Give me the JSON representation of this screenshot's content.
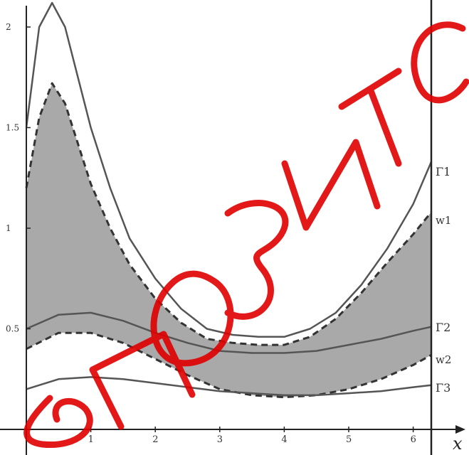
{
  "chart_data": {
    "type": "line",
    "xlabel": "x",
    "ylabel": "",
    "xlim": [
      0,
      6.28
    ],
    "ylim": [
      0,
      2.1
    ],
    "x_ticks": [
      "1",
      "2",
      "3",
      "4",
      "5",
      "6"
    ],
    "y_ticks": [
      "0.5",
      "1",
      "1.5",
      "2"
    ],
    "grid": false,
    "series": [
      {
        "name": "Γ1",
        "style": "solid",
        "x": [
          0,
          0.2,
          0.4,
          0.6,
          0.8,
          1.0,
          1.3,
          1.6,
          2.0,
          2.4,
          2.8,
          3.2,
          3.6,
          4.0,
          4.4,
          4.8,
          5.2,
          5.6,
          6.0,
          6.28
        ],
        "y": [
          1.5,
          2.0,
          2.12,
          2.0,
          1.75,
          1.5,
          1.2,
          0.95,
          0.75,
          0.6,
          0.5,
          0.47,
          0.46,
          0.46,
          0.5,
          0.58,
          0.72,
          0.9,
          1.12,
          1.33
        ]
      },
      {
        "name": "w1",
        "style": "dashed",
        "x": [
          0,
          0.2,
          0.4,
          0.6,
          0.8,
          1.0,
          1.3,
          1.6,
          2.0,
          2.4,
          2.8,
          3.2,
          3.6,
          4.0,
          4.4,
          4.8,
          5.2,
          5.6,
          6.0,
          6.28
        ],
        "y": [
          1.2,
          1.55,
          1.72,
          1.62,
          1.42,
          1.22,
          1.0,
          0.82,
          0.65,
          0.53,
          0.45,
          0.43,
          0.42,
          0.42,
          0.46,
          0.55,
          0.68,
          0.83,
          0.97,
          1.08
        ]
      },
      {
        "name": "Γ2",
        "style": "solid",
        "x": [
          0,
          0.5,
          1.0,
          1.5,
          2.0,
          2.5,
          3.0,
          3.5,
          4.0,
          4.5,
          5.0,
          5.5,
          6.0,
          6.28
        ],
        "y": [
          0.5,
          0.57,
          0.58,
          0.54,
          0.48,
          0.43,
          0.39,
          0.38,
          0.38,
          0.39,
          0.42,
          0.45,
          0.49,
          0.51
        ]
      },
      {
        "name": "w2",
        "style": "dashed",
        "x": [
          0,
          0.5,
          1.0,
          1.5,
          2.0,
          2.5,
          3.0,
          3.5,
          4.0,
          4.5,
          5.0,
          5.5,
          6.0,
          6.28
        ],
        "y": [
          0.4,
          0.48,
          0.48,
          0.43,
          0.35,
          0.27,
          0.2,
          0.17,
          0.16,
          0.17,
          0.2,
          0.25,
          0.32,
          0.37
        ]
      },
      {
        "name": "Γ3",
        "style": "solid",
        "x": [
          0,
          0.5,
          1.0,
          1.5,
          2.0,
          2.5,
          3.0,
          3.5,
          4.0,
          4.5,
          5.0,
          5.5,
          6.0,
          6.28
        ],
        "y": [
          0.2,
          0.25,
          0.26,
          0.25,
          0.23,
          0.21,
          0.19,
          0.18,
          0.17,
          0.17,
          0.18,
          0.19,
          0.21,
          0.22
        ]
      }
    ],
    "shaded_regions": [
      {
        "between": [
          "w1",
          "Γ2"
        ]
      },
      {
        "between": [
          "Γ2",
          "w2"
        ]
      }
    ],
    "labels": {
      "gamma1": "Γ1",
      "w1": "w1",
      "gamma2": "Γ2",
      "w2": "w2",
      "gamma3": "Γ3"
    },
    "colors": {
      "curve": "#555555",
      "fill": "#a9a9a9",
      "axis": "#222222",
      "watermark": "#e00000"
    }
  }
}
